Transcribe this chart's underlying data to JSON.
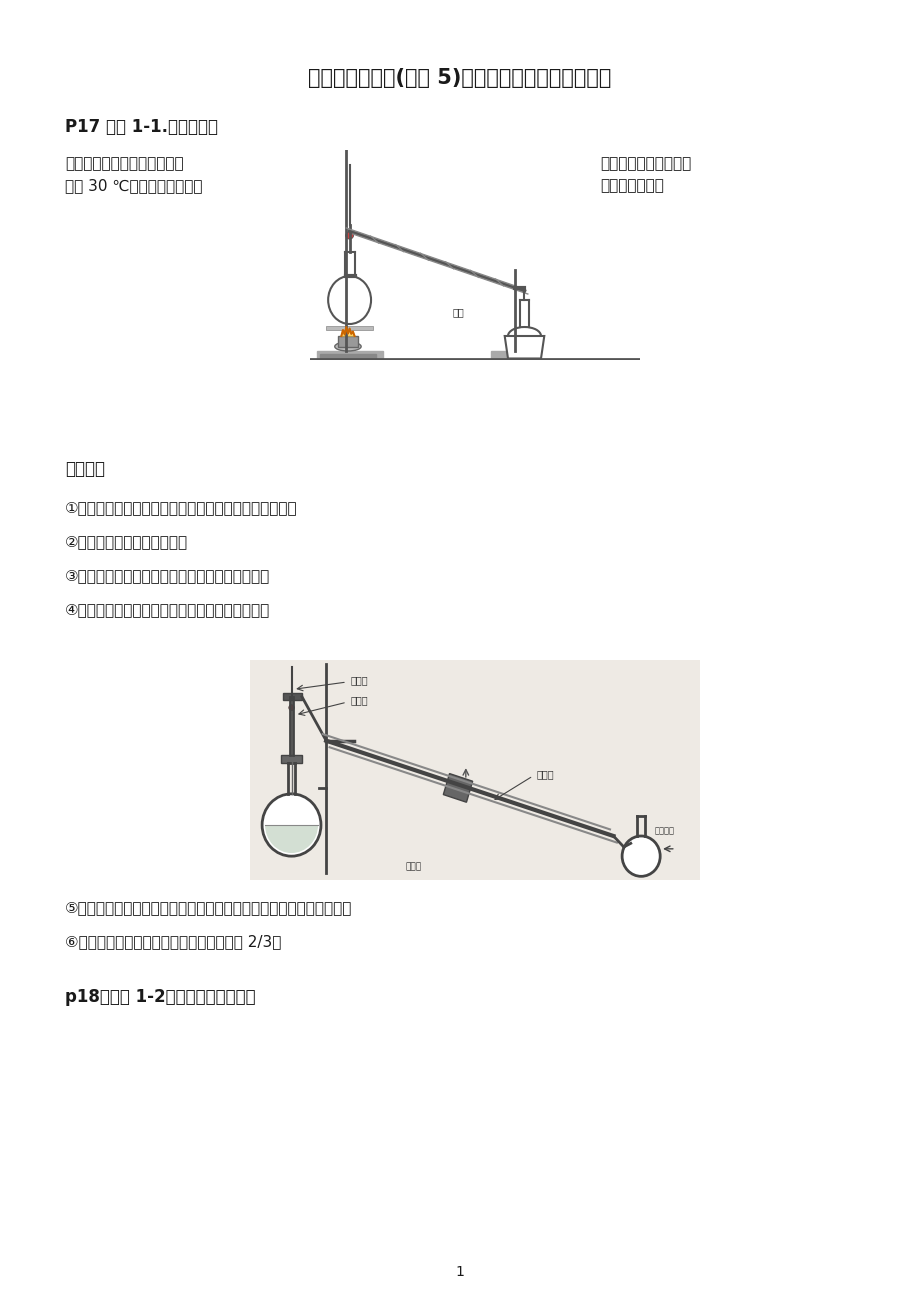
{
  "title": "人教版有机化学(选修 5)教材全部实验总结整理归纳",
  "title_fontsize": 15,
  "bg_color": "#ffffff",
  "text_color": "#1a1a1a",
  "heading1": "P17 实验 1-1.蒸馏实验：",
  "desc_left_line1": "蒸馏：利用互溶液体混合物中",
  "desc_left_line2": "相差 30 ℃以上）进行分离提",
  "desc_right_line1": "各组分沸点不同（一般",
  "desc_right_line2": "纯的一种方法。",
  "notice_heading": "【注意】",
  "notes": [
    "①仪器：蒸馏烧瓶、冷凝管、接引管（尾接管）、锥形瓶",
    "②温度计水银球位于支管口处",
    "③冷却水的通入方向：进水水流与气流方向相反。",
    "④沸点高而不稳定的液态物质可以考虑减压蒸馏。"
  ],
  "notes2_full": "⑤要加入碎瓷片（未上釉的废瓷片）防止液体暴沸，使液体平稳沸腾。",
  "notes2_before": "⑤要加入碎瓷片（",
  "notes2_underline": "未上釉的废瓷片",
  "notes2_after": "）防止液体暴沸，使液体平稳沸腾。",
  "note6": "⑥蒸馏烧瓶盛装溶液体积最大为烧瓶体积的 2/3。",
  "heading2": "p18：实验 1-2；苯甲酸的重结晶：",
  "page_num": "1",
  "diag1_label_cold_water": "冷水",
  "diag2_label_thermometer": "温度计",
  "diag2_label_capillary": "毛细管",
  "diag2_label_condenser": "冷凝管",
  "diag2_label_cold_water": "冷却水",
  "diag2_label_vacuum": "接真空泵",
  "diag2_bg": "#eeeae4"
}
